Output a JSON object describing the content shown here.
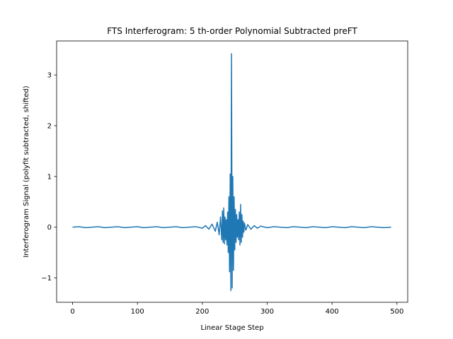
{
  "chart_data": {
    "type": "line",
    "title": "FTS Interferogram: 5 th-order Polynomial Subtracted preFT",
    "xlabel": "Linear Stage Step",
    "ylabel": "Interferogram Signal (polyfit subtracted, shifted)",
    "xlim": [
      -24.6,
      516.6
    ],
    "ylim": [
      -1.48,
      3.67
    ],
    "xticks": [
      0,
      100,
      200,
      300,
      400,
      500
    ],
    "yticks": [
      -1,
      0,
      1,
      2,
      3
    ],
    "xtick_labels": [
      "0",
      "100",
      "200",
      "300",
      "400",
      "500"
    ],
    "ytick_labels": [
      "−1",
      "0",
      "1",
      "2",
      "3"
    ],
    "grid": false,
    "legend": "none",
    "color": "#1f77b4",
    "series": [
      {
        "x": [
          0,
          10,
          20,
          30,
          40,
          50,
          60,
          70,
          80,
          90,
          100,
          110,
          120,
          130,
          140,
          150,
          160,
          170,
          180,
          190,
          200,
          205,
          210,
          215,
          220,
          223,
          226,
          228,
          230,
          231,
          232,
          233,
          234,
          235,
          236,
          237,
          238,
          239,
          240,
          241,
          242,
          243,
          244,
          245,
          246,
          247,
          248,
          249,
          250,
          251,
          252,
          253,
          254,
          255,
          256,
          257,
          258,
          259,
          260,
          261,
          262,
          263,
          264,
          265,
          267,
          270,
          275,
          280,
          285,
          290,
          300,
          310,
          320,
          330,
          340,
          350,
          360,
          370,
          380,
          390,
          400,
          410,
          420,
          430,
          440,
          450,
          460,
          470,
          480,
          491
        ],
        "y": [
          0.0,
          0.01,
          -0.01,
          0.0,
          0.01,
          -0.01,
          0.0,
          0.01,
          -0.01,
          0.0,
          0.01,
          -0.01,
          0.0,
          0.01,
          -0.01,
          0.0,
          0.01,
          -0.01,
          0.0,
          0.01,
          -0.02,
          0.03,
          -0.04,
          0.06,
          -0.08,
          0.1,
          -0.15,
          0.2,
          -0.25,
          0.32,
          -0.3,
          0.38,
          -0.33,
          0.2,
          -0.25,
          0.15,
          -0.35,
          0.3,
          -0.5,
          0.6,
          -0.88,
          1.05,
          -1.25,
          3.42,
          -1.2,
          1.0,
          -0.85,
          0.6,
          -0.45,
          0.35,
          -0.3,
          0.25,
          -0.2,
          0.15,
          -0.25,
          0.3,
          -0.35,
          0.45,
          -0.3,
          0.25,
          -0.2,
          0.12,
          -0.1,
          0.08,
          -0.06,
          0.05,
          -0.04,
          0.03,
          -0.02,
          0.02,
          -0.01,
          0.01,
          0.0,
          -0.01,
          0.01,
          0.0,
          -0.01,
          0.01,
          0.0,
          -0.01,
          0.01,
          0.0,
          -0.01,
          0.01,
          0.0,
          -0.01,
          0.01,
          0.0,
          -0.01,
          0.0
        ]
      }
    ]
  }
}
